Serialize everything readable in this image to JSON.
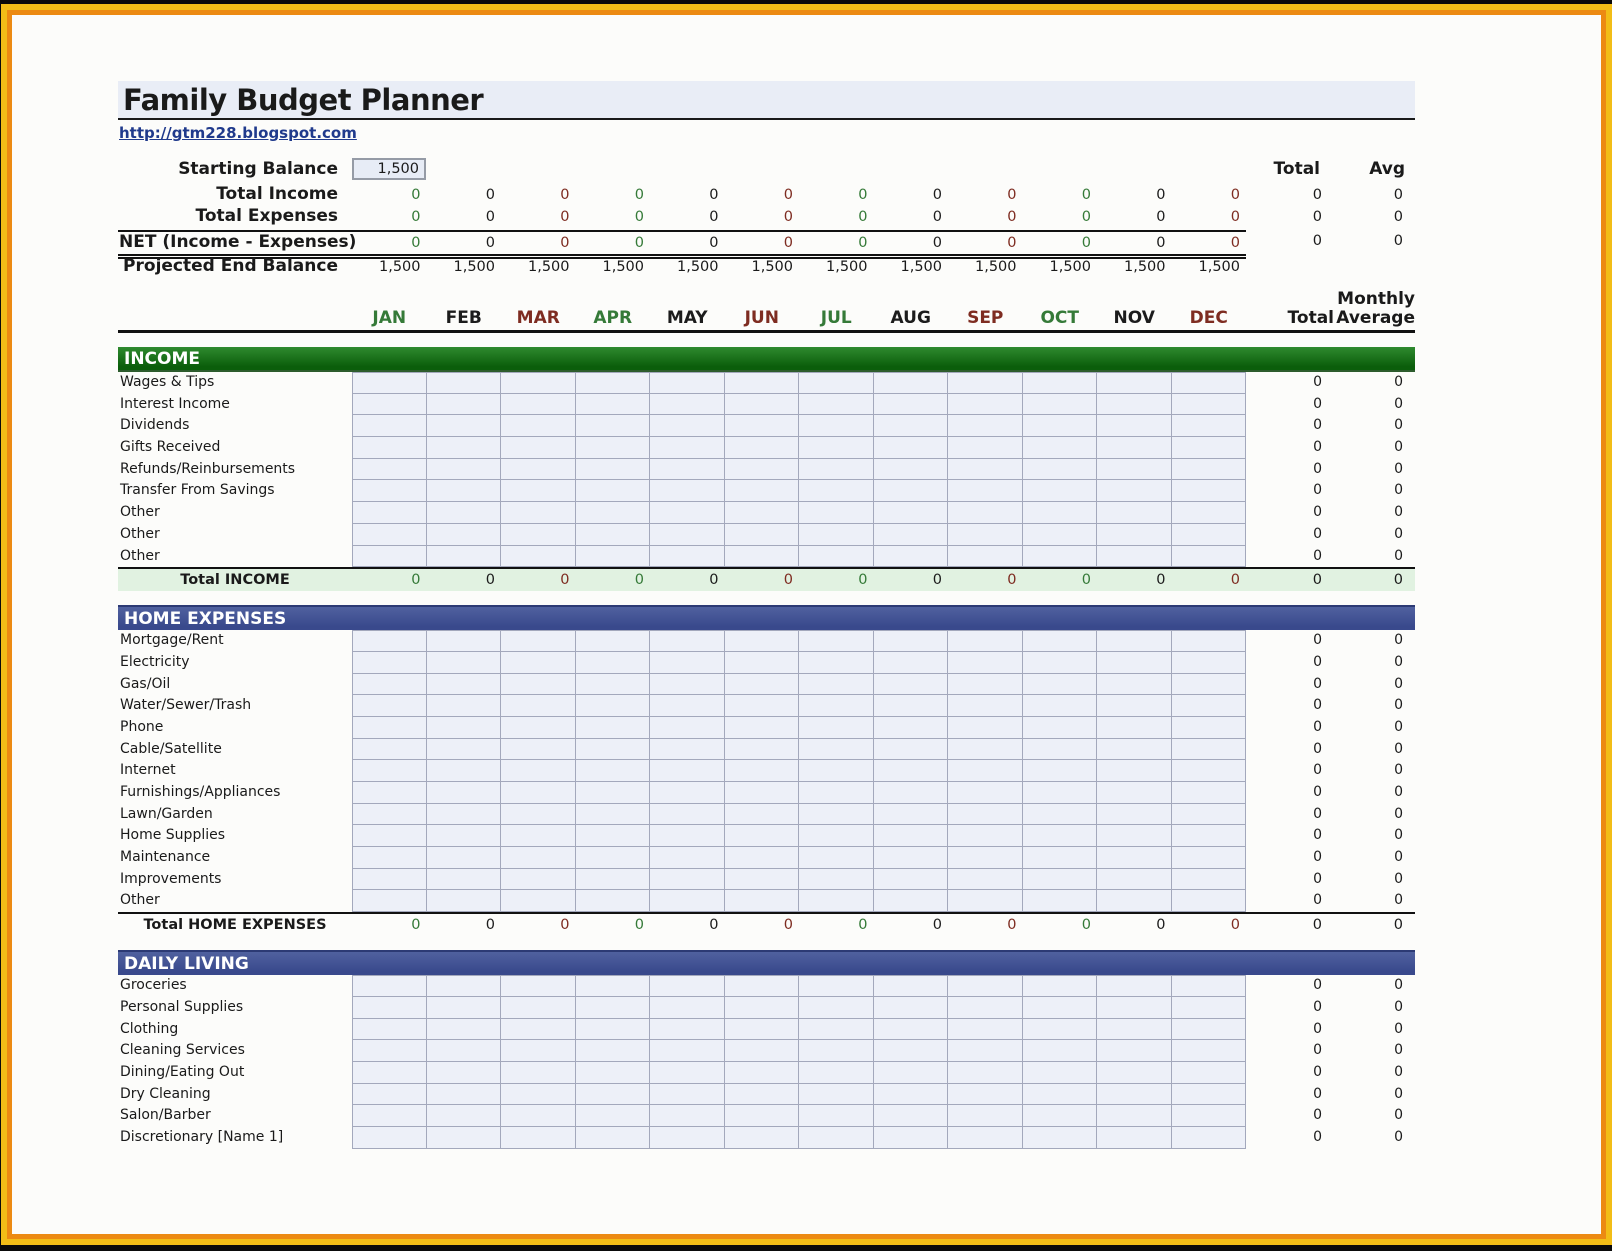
{
  "header": {
    "title": "Family Budget Planner",
    "link": "http://gtm228.blogspot.com"
  },
  "summary": {
    "starting_balance": {
      "label": "Starting Balance",
      "value": "1,500"
    },
    "col_headers": {
      "total": "Total",
      "avg": "Avg"
    },
    "rows": [
      {
        "label": "Total Income",
        "align": "right",
        "monthly": [
          "0",
          "0",
          "0",
          "0",
          "0",
          "0",
          "0",
          "0",
          "0",
          "0",
          "0",
          "0"
        ],
        "total": "0",
        "avg": "0",
        "net": false
      },
      {
        "label": "Total Expenses",
        "align": "right",
        "monthly": [
          "0",
          "0",
          "0",
          "0",
          "0",
          "0",
          "0",
          "0",
          "0",
          "0",
          "0",
          "0"
        ],
        "total": "0",
        "avg": "0",
        "net": false
      },
      {
        "label": "NET (Income - Expenses)",
        "align": "left",
        "monthly": [
          "0",
          "0",
          "0",
          "0",
          "0",
          "0",
          "0",
          "0",
          "0",
          "0",
          "0",
          "0"
        ],
        "total": "0",
        "avg": "0",
        "net": true
      },
      {
        "label": "Projected End Balance",
        "align": "right",
        "monthly": [
          "1,500",
          "1,500",
          "1,500",
          "1,500",
          "1,500",
          "1,500",
          "1,500",
          "1,500",
          "1,500",
          "1,500",
          "1,500",
          "1,500"
        ],
        "total": "",
        "avg": "",
        "net": false
      }
    ]
  },
  "month_header": {
    "months": [
      "JAN",
      "FEB",
      "MAR",
      "APR",
      "MAY",
      "JUN",
      "JUL",
      "AUG",
      "SEP",
      "OCT",
      "NOV",
      "DEC"
    ],
    "total": "Total",
    "avg_line1": "Monthly",
    "avg_line2": "Average"
  },
  "sections": [
    {
      "title": "INCOME",
      "theme": "green",
      "items": [
        "Wages & Tips",
        "Interest Income",
        "Dividends",
        "Gifts Received",
        "Refunds/Reinbursements",
        "Transfer From Savings",
        "Other",
        "Other",
        "Other"
      ],
      "item_total": "0",
      "item_avg": "0",
      "total_row": {
        "label": "Total INCOME",
        "monthly": [
          "0",
          "0",
          "0",
          "0",
          "0",
          "0",
          "0",
          "0",
          "0",
          "0",
          "0",
          "0"
        ],
        "total": "0",
        "avg": "0",
        "bg": "green"
      }
    },
    {
      "title": "HOME EXPENSES",
      "theme": "blue",
      "items": [
        "Mortgage/Rent",
        "Electricity",
        "Gas/Oil",
        "Water/Sewer/Trash",
        "Phone",
        "Cable/Satellite",
        "Internet",
        "Furnishings/Appliances",
        "Lawn/Garden",
        "Home Supplies",
        "Maintenance",
        "Improvements",
        "Other"
      ],
      "item_total": "0",
      "item_avg": "0",
      "total_row": {
        "label": "Total HOME EXPENSES",
        "monthly": [
          "0",
          "0",
          "0",
          "0",
          "0",
          "0",
          "0",
          "0",
          "0",
          "0",
          "0",
          "0"
        ],
        "total": "0",
        "avg": "0",
        "bg": "white"
      }
    },
    {
      "title": "DAILY LIVING",
      "theme": "blue",
      "items": [
        "Groceries",
        "Personal Supplies",
        "Clothing",
        "Cleaning Services",
        "Dining/Eating Out",
        "Dry Cleaning",
        "Salon/Barber",
        "Discretionary [Name 1]"
      ],
      "item_total": "0",
      "item_avg": "0",
      "total_row": null
    }
  ],
  "colors": {
    "frame_yellow": "#f2bd17",
    "frame_orange": "#ec8a12",
    "band_green": "#0b5e0b",
    "band_blue": "#3d4f94",
    "title_bar_bg": "#e9edf6",
    "link": "#203a8c",
    "cell_bg": "#edf0f8",
    "cell_border": "#a3a8bc",
    "total_income_row_bg": "#e1f2e1",
    "value_green": "#357a38",
    "value_black": "#1c1c1c",
    "value_darkred": "#7e2c21"
  }
}
